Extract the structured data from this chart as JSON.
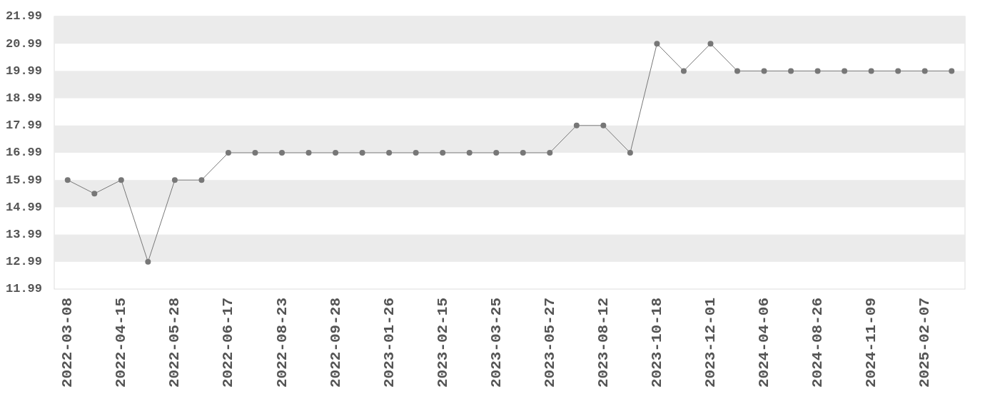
{
  "chart_data": {
    "type": "line",
    "categories": [
      "2022-03-08",
      null,
      "2022-04-15",
      null,
      "2022-05-28",
      null,
      "2022-06-17",
      null,
      "2022-08-23",
      null,
      "2022-09-28",
      null,
      "2023-01-26",
      null,
      "2023-02-15",
      null,
      "2023-03-25",
      null,
      "2023-05-27",
      null,
      "2023-08-12",
      null,
      "2023-10-18",
      null,
      "2023-12-01",
      null,
      "2024-04-06",
      null,
      "2024-08-26",
      null,
      "2024-11-09",
      null,
      "2025-02-07",
      null
    ],
    "series": [
      {
        "color": "#777777",
        "values": [
          15.99,
          15.49,
          15.99,
          12.99,
          15.99,
          15.99,
          16.99,
          16.99,
          16.99,
          16.99,
          16.99,
          16.99,
          16.99,
          16.99,
          16.99,
          16.99,
          16.99,
          16.99,
          16.99,
          17.99,
          17.99,
          16.99,
          20.99,
          19.99,
          20.99,
          19.99,
          19.99,
          19.99,
          19.99,
          19.99,
          19.99,
          19.99,
          19.99,
          19.99
        ]
      }
    ],
    "ylim": [
      11.99,
      21.99
    ],
    "yticks": [
      11.99,
      12.99,
      13.99,
      14.99,
      15.99,
      16.99,
      17.99,
      18.99,
      19.99,
      20.99,
      21.99
    ],
    "bands": [
      {
        "axis": "y",
        "from": 12.99,
        "to": 13.99,
        "color": "#ebebeb"
      },
      {
        "axis": "y",
        "from": 14.99,
        "to": 15.99,
        "color": "#ebebeb"
      },
      {
        "axis": "y",
        "from": 16.99,
        "to": 17.99,
        "color": "#ebebeb"
      },
      {
        "axis": "y",
        "from": 18.99,
        "to": 19.99,
        "color": "#ebebeb"
      },
      {
        "axis": "y",
        "from": 20.99,
        "to": 21.99,
        "color": "#ebebeb"
      }
    ],
    "marker": "circle",
    "line_style": "solid"
  }
}
